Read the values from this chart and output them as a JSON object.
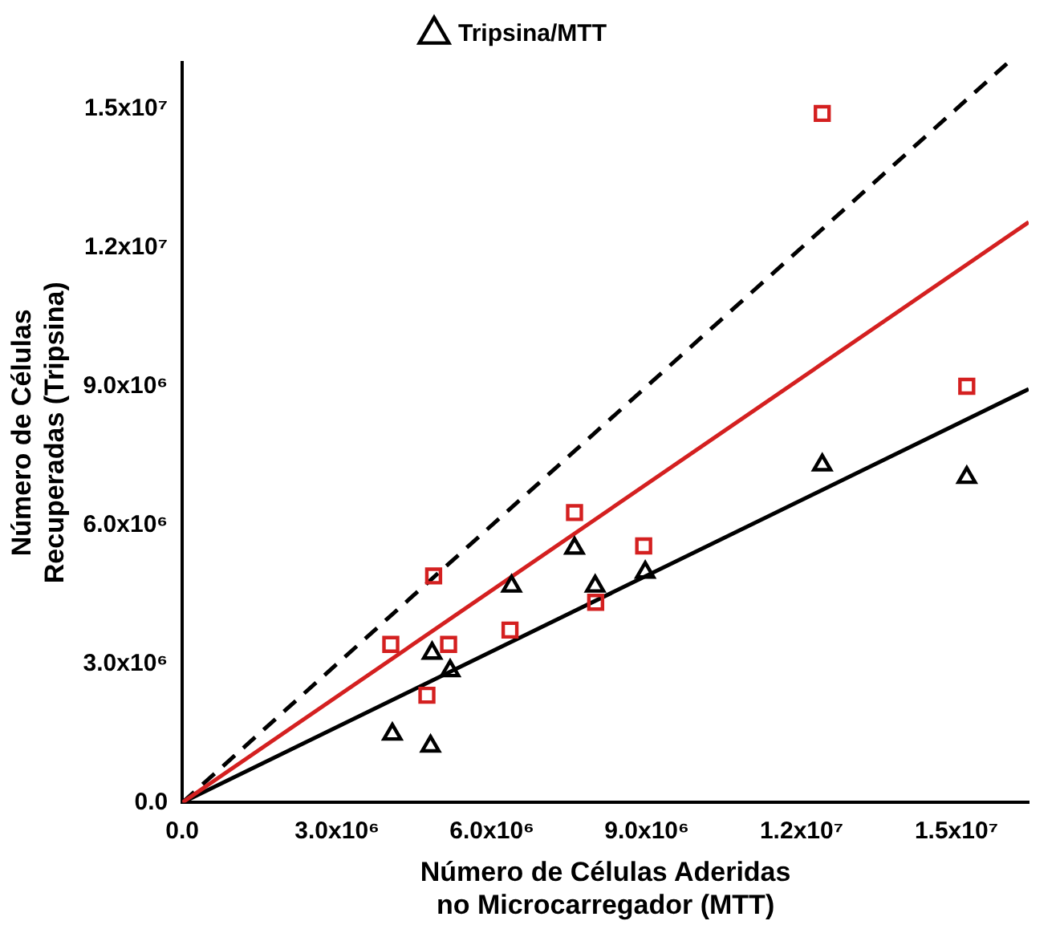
{
  "chart_data": {
    "type": "scatter",
    "xlabel": "Número de Células Aderidas no Microcarregador (MTT)",
    "ylabel": "Número de Células Recuperadas (Tripsina)",
    "series": [
      {
        "color": "#d42020",
        "marker": "square",
        "x": [
          4040000,
          4870000,
          5160000,
          4740000,
          6350000,
          7600000,
          8010000,
          8940000,
          12400000,
          15200000
        ],
        "values": [
          3420000,
          4900000,
          3420000,
          2320000,
          3730000,
          6270000,
          4330000,
          5550000,
          14900000,
          9000000
        ]
      },
      {
        "name": "Tripsina/MTT",
        "color": "#000000",
        "marker": "triangle",
        "x": [
          4070000,
          4810000,
          4840000,
          5190000,
          6380000,
          7600000,
          8000000,
          8970000,
          12400000,
          15200000
        ],
        "values": [
          1480000,
          1220000,
          3230000,
          2850000,
          4680000,
          5500000,
          4680000,
          4980000,
          7300000,
          7030000
        ]
      },
      {
        "type": "line",
        "color": "#d42020",
        "line_style": "solid",
        "x": [
          0,
          16400000
        ],
        "values": [
          0,
          12550000
        ]
      },
      {
        "type": "line",
        "color": "#000000",
        "line_style": "solid",
        "x": [
          0,
          16400000
        ],
        "values": [
          0,
          8940000
        ]
      },
      {
        "type": "line",
        "color": "#000000",
        "line_style": "dashed",
        "x": [
          0,
          16000000
        ],
        "values": [
          0,
          16000000
        ]
      }
    ],
    "xlim": [
      0,
      16400000
    ],
    "xticks": [
      {
        "value": 0,
        "label": "0.0"
      },
      {
        "value": 3000000,
        "label": "3.0x10⁶"
      },
      {
        "value": 6000000,
        "label": "6.0x10⁶"
      },
      {
        "value": 9000000,
        "label": "9.0x10⁶"
      },
      {
        "value": 12000000,
        "label": "1.2x10⁷"
      },
      {
        "value": 15000000,
        "label": "1.5x10⁷"
      }
    ],
    "ylim": [
      0,
      16000000
    ],
    "yticks": [
      {
        "value": 0,
        "label": "0.0"
      },
      {
        "value": 3000000,
        "label": "3.0x10⁶"
      },
      {
        "value": 6000000,
        "label": "6.0x10⁶"
      },
      {
        "value": 9000000,
        "label": "9.0x10⁶"
      },
      {
        "value": 12000000,
        "label": "1.2x10⁷"
      },
      {
        "value": 15000000,
        "label": "1.5x10⁷"
      }
    ],
    "grid": false,
    "legend": "top"
  }
}
